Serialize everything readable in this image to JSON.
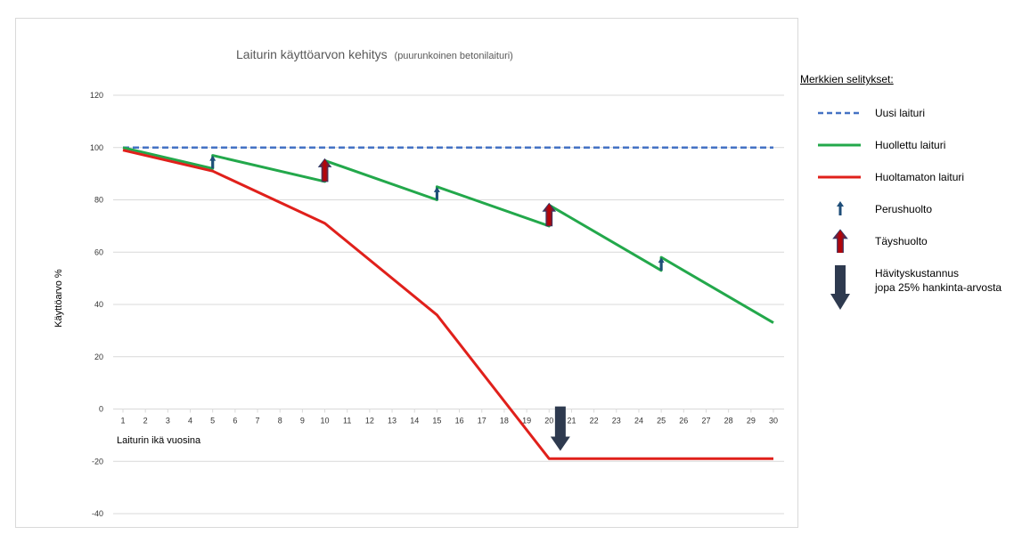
{
  "chart_data": {
    "type": "line",
    "title": "Laiturin käyttöarvon kehitys",
    "subtitle": "(puurunkoinen betonilaituri)",
    "xlabel": "Laiturin ikä vuosina",
    "ylabel": "Käyttöarvo %",
    "x_ticks": [
      1,
      2,
      3,
      4,
      5,
      6,
      7,
      8,
      9,
      10,
      11,
      12,
      13,
      14,
      15,
      16,
      17,
      18,
      19,
      20,
      21,
      22,
      23,
      24,
      25,
      26,
      27,
      28,
      29,
      30
    ],
    "xlim": [
      1,
      30
    ],
    "ylim": [
      -40,
      120
    ],
    "y_ticks": [
      -40,
      -20,
      0,
      20,
      40,
      60,
      80,
      100,
      120
    ],
    "grid": "horizontal",
    "legend_position": "right",
    "series": [
      {
        "name": "Uusi laituri",
        "color": "#4472c4",
        "style": "dashed",
        "points": [
          [
            1,
            100
          ],
          [
            30,
            100
          ]
        ]
      },
      {
        "name": "Huollettu laituri",
        "color": "#23a84b",
        "style": "solid",
        "points": [
          [
            1,
            100
          ],
          [
            5,
            92
          ],
          [
            5,
            97
          ],
          [
            10,
            87
          ],
          [
            10,
            95
          ],
          [
            15,
            80
          ],
          [
            15,
            85
          ],
          [
            20,
            70
          ],
          [
            20,
            78
          ],
          [
            25,
            53
          ],
          [
            25,
            58
          ],
          [
            30,
            33
          ]
        ]
      },
      {
        "name": "Huoltamaton laituri",
        "color": "#e0201b",
        "style": "solid",
        "points": [
          [
            1,
            99
          ],
          [
            5,
            91
          ],
          [
            10,
            71
          ],
          [
            15,
            36
          ],
          [
            20,
            -19
          ],
          [
            30,
            -19
          ]
        ]
      }
    ],
    "annotations": [
      {
        "type": "Perushuolto",
        "x": 5,
        "from": 92,
        "to": 97
      },
      {
        "type": "Täyshuolto",
        "x": 10,
        "from": 87,
        "to": 95
      },
      {
        "type": "Perushuolto",
        "x": 15,
        "from": 80,
        "to": 85
      },
      {
        "type": "Täyshuolto",
        "x": 20,
        "from": 70,
        "to": 78
      },
      {
        "type": "Perushuolto",
        "x": 25,
        "from": 53,
        "to": 58
      },
      {
        "type": "Hävityskustannus",
        "x": 20.5,
        "from": 1,
        "to": -16
      }
    ]
  },
  "legend": {
    "heading": "Merkkien selitykset:",
    "items": [
      {
        "label": "Uusi laituri",
        "icon": "dashed-line"
      },
      {
        "label": "Huollettu laituri",
        "icon": "green-line"
      },
      {
        "label": "Huoltamaton laituri",
        "icon": "red-line"
      },
      {
        "label": "Perushuolto",
        "icon": "small-arrow-up"
      },
      {
        "label": "Täyshuolto",
        "icon": "big-arrow-up"
      },
      {
        "label": "Hävityskustannus",
        "label2": "jopa 25% hankinta-arvosta",
        "icon": "big-arrow-down"
      }
    ]
  },
  "colors": {
    "dashed": "#4472c4",
    "green": "#23a84b",
    "red": "#e0201b",
    "arrow_blue": "#1f4e79",
    "arrow_dark": "#2e3a4f",
    "arrow_red": "#c00000",
    "grid": "#d9d9d9"
  }
}
